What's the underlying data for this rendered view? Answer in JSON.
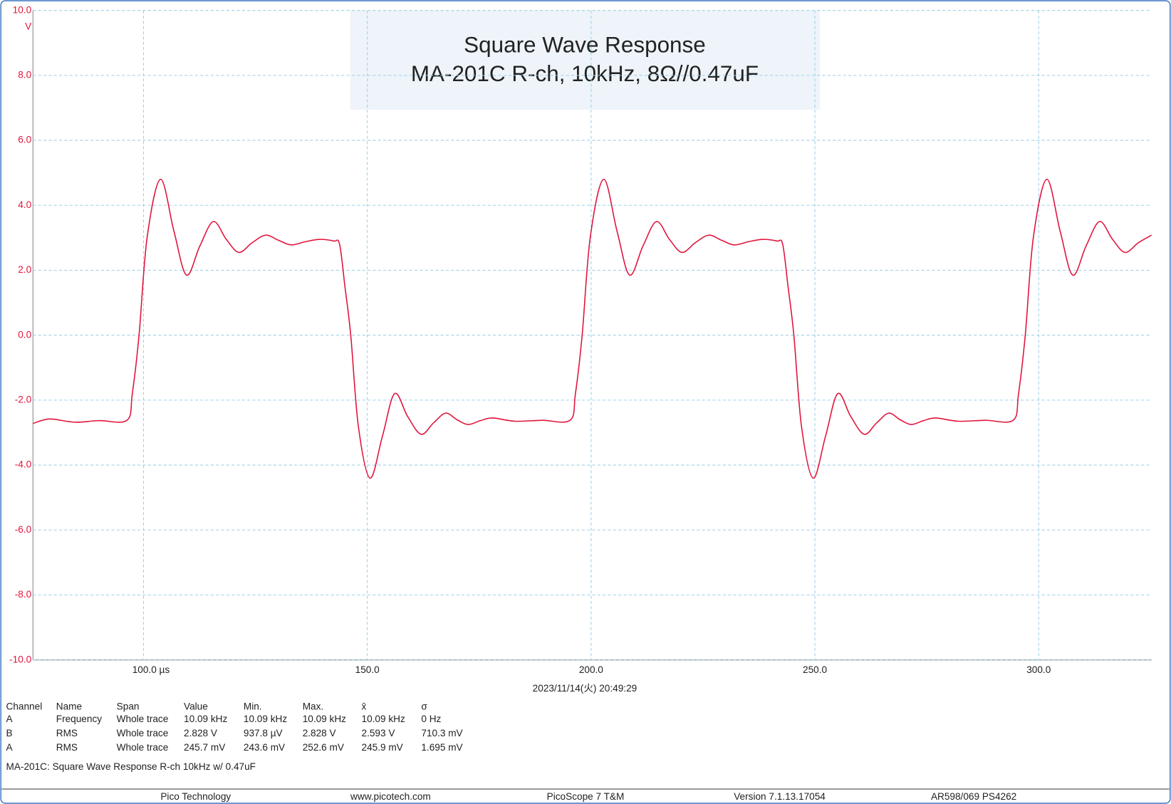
{
  "chart_data": {
    "type": "line",
    "title": "Square Wave Response",
    "subtitle": "MA-201C R-ch, 10kHz, 8Ω//0.47uF",
    "y_unit": "V",
    "timestamp": "2023/11/14(火) 20:49:29",
    "color": "#e0143c",
    "grid": true,
    "xlim": [
      75.3,
      325.2
    ],
    "ylim": [
      -10,
      10
    ],
    "xticks": [
      {
        "value": 100,
        "label": "100.0 µs"
      },
      {
        "value": 150,
        "label": "150.0"
      },
      {
        "value": 200,
        "label": "200.0"
      },
      {
        "value": 250,
        "label": "250.0"
      },
      {
        "value": 300,
        "label": "300.0"
      }
    ],
    "yticks": [
      {
        "value": 10,
        "label": "10.0"
      },
      {
        "value": 8,
        "label": "8.0"
      },
      {
        "value": 6,
        "label": "6.0"
      },
      {
        "value": 4,
        "label": "4.0"
      },
      {
        "value": 2,
        "label": "2.0"
      },
      {
        "value": 0,
        "label": "0.0"
      },
      {
        "value": -2,
        "label": "-2.0"
      },
      {
        "value": -4,
        "label": "-4.0"
      },
      {
        "value": -6,
        "label": "-6.0"
      },
      {
        "value": -8,
        "label": "-8.0"
      },
      {
        "value": -10,
        "label": "-10.0"
      }
    ],
    "x": [
      75.3,
      79.0,
      84.6,
      90.0,
      96.3,
      97.5,
      99.0,
      100.8,
      103.8,
      106.8,
      109.6,
      112.6,
      115.6,
      118.5,
      121.3,
      124.3,
      127.3,
      130.2,
      133.0,
      136.2,
      139.3,
      142.5,
      143.8,
      145.0,
      146.3,
      148.0,
      150.6,
      153.4,
      156.1,
      159.0,
      162.0,
      164.8,
      167.5,
      170.0,
      172.5,
      175.3,
      178.0,
      183.0,
      189.0,
      195.3,
      196.5,
      198.0,
      199.8,
      202.8,
      205.8,
      208.6,
      211.6,
      214.6,
      217.5,
      220.3,
      223.3,
      226.3,
      229.2,
      232.0,
      235.2,
      238.3,
      241.5,
      242.8,
      244.0,
      245.3,
      247.0,
      249.6,
      252.4,
      255.1,
      258.0,
      261.0,
      263.8,
      266.5,
      269.0,
      271.5,
      274.3,
      277.0,
      282.0,
      288.0,
      294.3,
      295.5,
      297.0,
      298.8,
      301.8,
      304.8,
      307.6,
      310.6,
      313.6,
      316.5,
      319.3,
      322.3,
      325.2
    ],
    "values": [
      -2.72,
      -2.58,
      -2.68,
      -2.63,
      -2.62,
      -1.8,
      0.0,
      3.0,
      4.8,
      3.2,
      1.85,
      2.75,
      3.5,
      2.95,
      2.55,
      2.85,
      3.08,
      2.92,
      2.78,
      2.88,
      2.95,
      2.9,
      2.8,
      1.5,
      0.0,
      -2.8,
      -4.4,
      -3.1,
      -1.8,
      -2.5,
      -3.05,
      -2.7,
      -2.4,
      -2.6,
      -2.75,
      -2.63,
      -2.55,
      -2.65,
      -2.62,
      -2.62,
      -1.8,
      0.0,
      3.0,
      4.8,
      3.2,
      1.85,
      2.75,
      3.5,
      2.95,
      2.55,
      2.85,
      3.08,
      2.92,
      2.78,
      2.88,
      2.95,
      2.9,
      2.8,
      1.5,
      0.0,
      -2.8,
      -4.4,
      -3.1,
      -1.8,
      -2.5,
      -3.05,
      -2.7,
      -2.4,
      -2.6,
      -2.75,
      -2.63,
      -2.55,
      -2.65,
      -2.62,
      -2.62,
      -1.8,
      0.0,
      3.0,
      4.8,
      3.2,
      1.85,
      2.75,
      3.5,
      2.95,
      2.55,
      2.85,
      3.08
    ]
  },
  "measurements": {
    "headers": [
      "Channel",
      "Name",
      "Span",
      "Value",
      "Min.",
      "Max.",
      "x̄",
      "σ"
    ],
    "rows": [
      [
        "A",
        "Frequency",
        "Whole trace",
        "10.09 kHz",
        "10.09 kHz",
        "10.09 kHz",
        "10.09 kHz",
        "0 Hz"
      ],
      [
        "B",
        "RMS",
        "Whole trace",
        "2.828 V",
        "937.8 µV",
        "2.828 V",
        "2.593 V",
        "710.3 mV"
      ],
      [
        "A",
        "RMS",
        "Whole trace",
        "245.7 mV",
        "243.6 mV",
        "252.6 mV",
        "245.9 mV",
        "1.695 mV"
      ]
    ]
  },
  "note": "MA-201C: Square Wave Response R-ch 10kHz  w/ 0.47uF",
  "footer": [
    "Pico Technology",
    "www.picotech.com",
    "PicoScope 7 T&M",
    "Version 7.1.13.17054",
    "AR598/069 PS4262"
  ]
}
